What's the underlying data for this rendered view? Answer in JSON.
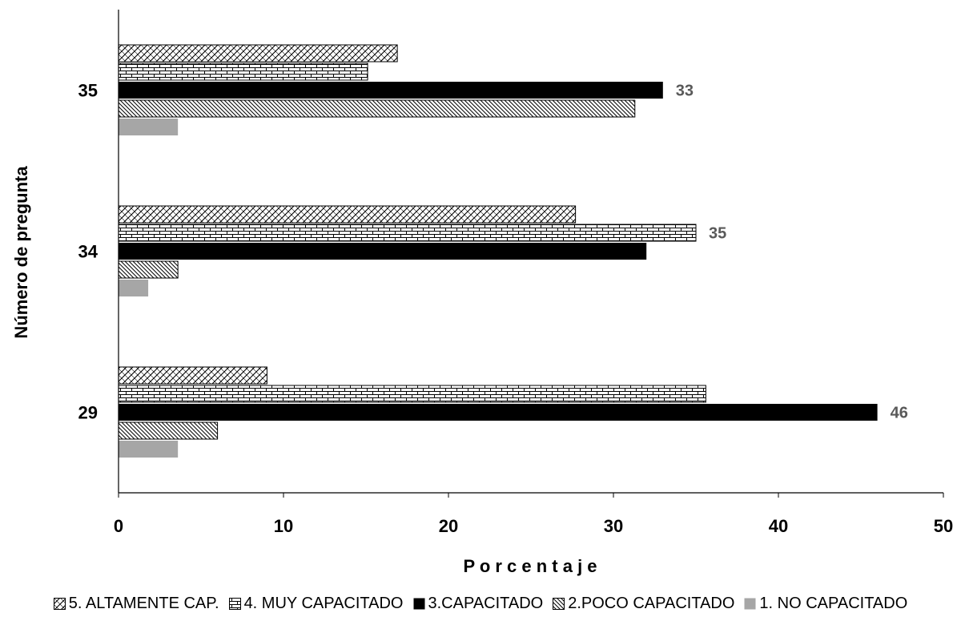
{
  "chart_data": {
    "type": "bar",
    "orientation": "horizontal",
    "title": "",
    "xlabel": "P o r c e n t a j e",
    "ylabel": "Número de pregunta",
    "categories": [
      "29",
      "34",
      "35"
    ],
    "xlim": [
      0,
      50
    ],
    "xticks": [
      "0",
      "10",
      "20",
      "30",
      "40",
      "50"
    ],
    "grid": false,
    "legend_position": "bottom",
    "series": [
      {
        "name": "5. ALTAMENTE CAP.",
        "values": [
          9,
          27.7,
          16.9
        ],
        "pattern": "diagonal-cross",
        "color": "#000000"
      },
      {
        "name": "4. MUY CAPACITADO",
        "values": [
          35.6,
          35,
          15.1
        ],
        "pattern": "brick",
        "color": "#000000"
      },
      {
        "name": "3.CAPACITADO",
        "values": [
          46,
          32,
          33
        ],
        "pattern": "solid",
        "color": "#000000"
      },
      {
        "name": "2.POCO CAPACITADO",
        "values": [
          6,
          3.6,
          31.3
        ],
        "pattern": "diagonal",
        "color": "#000000"
      },
      {
        "name": "1. NO CAPACITADO",
        "values": [
          3.6,
          1.8,
          3.6
        ],
        "pattern": "solid",
        "color": "#a6a6a6"
      }
    ],
    "data_labels": [
      {
        "series": "3.CAPACITADO",
        "category": "29",
        "text": "46"
      },
      {
        "series": "4. MUY CAPACITADO",
        "category": "34",
        "text": "35"
      },
      {
        "series": "3.CAPACITADO",
        "category": "35",
        "text": "33"
      }
    ]
  }
}
